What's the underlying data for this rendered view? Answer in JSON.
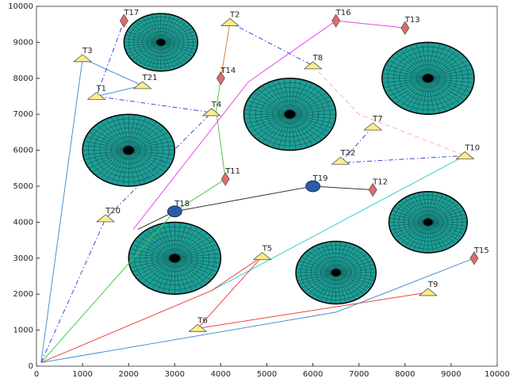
{
  "chart_data": {
    "type": "scatter",
    "xlim": [
      0,
      10000
    ],
    "ylim": [
      0,
      10000
    ],
    "xticks": [
      0,
      1000,
      2000,
      3000,
      4000,
      5000,
      6000,
      7000,
      8000,
      9000,
      10000
    ],
    "yticks": [
      0,
      1000,
      2000,
      3000,
      4000,
      5000,
      6000,
      7000,
      8000,
      9000,
      10000
    ],
    "grid": false,
    "obstacle_color": "#1f9e96",
    "marker_colors": {
      "triangle": "#ffee88",
      "diamond": "#e06b6b",
      "circle": "#2a5aa8"
    },
    "obstacles": [
      {
        "x": 2700,
        "y": 9000,
        "radius": 800
      },
      {
        "x": 8500,
        "y": 8000,
        "radius": 1000
      },
      {
        "x": 5500,
        "y": 7000,
        "radius": 1000
      },
      {
        "x": 2000,
        "y": 6000,
        "radius": 1000
      },
      {
        "x": 8500,
        "y": 4000,
        "radius": 850
      },
      {
        "x": 3000,
        "y": 3000,
        "radius": 1000
      },
      {
        "x": 6500,
        "y": 2600,
        "radius": 870
      }
    ],
    "paths": [
      {
        "color": "#4a90d0",
        "style": "solid",
        "x": [
          100,
          1000,
          2300,
          1300
        ],
        "y": [
          100,
          8550,
          7800,
          7500
        ]
      },
      {
        "color": "#4444dd",
        "style": "dashdot",
        "x": [
          100,
          1500,
          3800,
          1300,
          1900
        ],
        "y": [
          100,
          4100,
          7050,
          7500,
          9600
        ]
      },
      {
        "color": "#4444dd",
        "style": "dashdot",
        "x": [
          4200,
          6000
        ],
        "y": [
          9550,
          8350
        ]
      },
      {
        "color": "#4444dd",
        "style": "dashdot",
        "x": [
          7300,
          6600,
          9300
        ],
        "y": [
          6650,
          5650,
          5850
        ]
      },
      {
        "color": "#44cc44",
        "style": "solid",
        "x": [
          100,
          3000,
          4100,
          3900,
          4000
        ],
        "y": [
          100,
          4300,
          5200,
          7100,
          8000
        ]
      },
      {
        "color": "#e08030",
        "style": "solid",
        "x": [
          4000,
          4200
        ],
        "y": [
          8000,
          9550
        ]
      },
      {
        "color": "#ee44ee",
        "style": "solid",
        "x": [
          2100,
          4600,
          6500,
          8000
        ],
        "y": [
          3800,
          7900,
          9600,
          9400
        ]
      },
      {
        "color": "#333333",
        "style": "solid",
        "x": [
          2200,
          3000,
          6000,
          7300
        ],
        "y": [
          3800,
          4300,
          5000,
          4900
        ]
      },
      {
        "color": "#33cccc",
        "style": "solid",
        "x": [
          3800,
          9300
        ],
        "y": [
          2100,
          5850
        ]
      },
      {
        "color": "#ee4444",
        "style": "solid",
        "x": [
          100,
          3800,
          4900,
          3500,
          8500
        ],
        "y": [
          100,
          2100,
          3050,
          1050,
          2050
        ]
      },
      {
        "color": "#4a90d0",
        "style": "solid",
        "x": [
          100,
          6500,
          9500
        ],
        "y": [
          100,
          1500,
          3000
        ]
      },
      {
        "color": "#ffaacc",
        "style": "dashed",
        "x": [
          6000,
          7000,
          9300
        ],
        "y": [
          8350,
          7000,
          5850
        ]
      }
    ],
    "targets": [
      {
        "label": "T1",
        "marker": "triangle",
        "x": 1300,
        "y": 7500
      },
      {
        "label": "T2",
        "marker": "triangle",
        "x": 4200,
        "y": 9550
      },
      {
        "label": "T3",
        "marker": "triangle",
        "x": 1000,
        "y": 8550
      },
      {
        "label": "T4",
        "marker": "triangle",
        "x": 3800,
        "y": 7050
      },
      {
        "label": "T5",
        "marker": "triangle",
        "x": 4900,
        "y": 3050
      },
      {
        "label": "T6",
        "marker": "triangle",
        "x": 3500,
        "y": 1050
      },
      {
        "label": "T7",
        "marker": "triangle",
        "x": 7300,
        "y": 6650
      },
      {
        "label": "T8",
        "marker": "triangle",
        "x": 6000,
        "y": 8350
      },
      {
        "label": "T9",
        "marker": "triangle",
        "x": 8500,
        "y": 2050
      },
      {
        "label": "T10",
        "marker": "triangle",
        "x": 9300,
        "y": 5850
      },
      {
        "label": "T11",
        "marker": "diamond",
        "x": 4100,
        "y": 5200
      },
      {
        "label": "T12",
        "marker": "diamond",
        "x": 7300,
        "y": 4900
      },
      {
        "label": "T13",
        "marker": "diamond",
        "x": 8000,
        "y": 9400
      },
      {
        "label": "T14",
        "marker": "diamond",
        "x": 4000,
        "y": 8000
      },
      {
        "label": "T15",
        "marker": "diamond",
        "x": 9500,
        "y": 3000
      },
      {
        "label": "T16",
        "marker": "diamond",
        "x": 6500,
        "y": 9600
      },
      {
        "label": "T17",
        "marker": "diamond",
        "x": 1900,
        "y": 9600
      },
      {
        "label": "T18",
        "marker": "circle",
        "x": 3000,
        "y": 4300
      },
      {
        "label": "T19",
        "marker": "circle",
        "x": 6000,
        "y": 5000
      },
      {
        "label": "T20",
        "marker": "triangle",
        "x": 1500,
        "y": 4100
      },
      {
        "label": "T21",
        "marker": "triangle",
        "x": 2300,
        "y": 7800
      },
      {
        "label": "T22",
        "marker": "triangle",
        "x": 6600,
        "y": 5700
      }
    ]
  }
}
